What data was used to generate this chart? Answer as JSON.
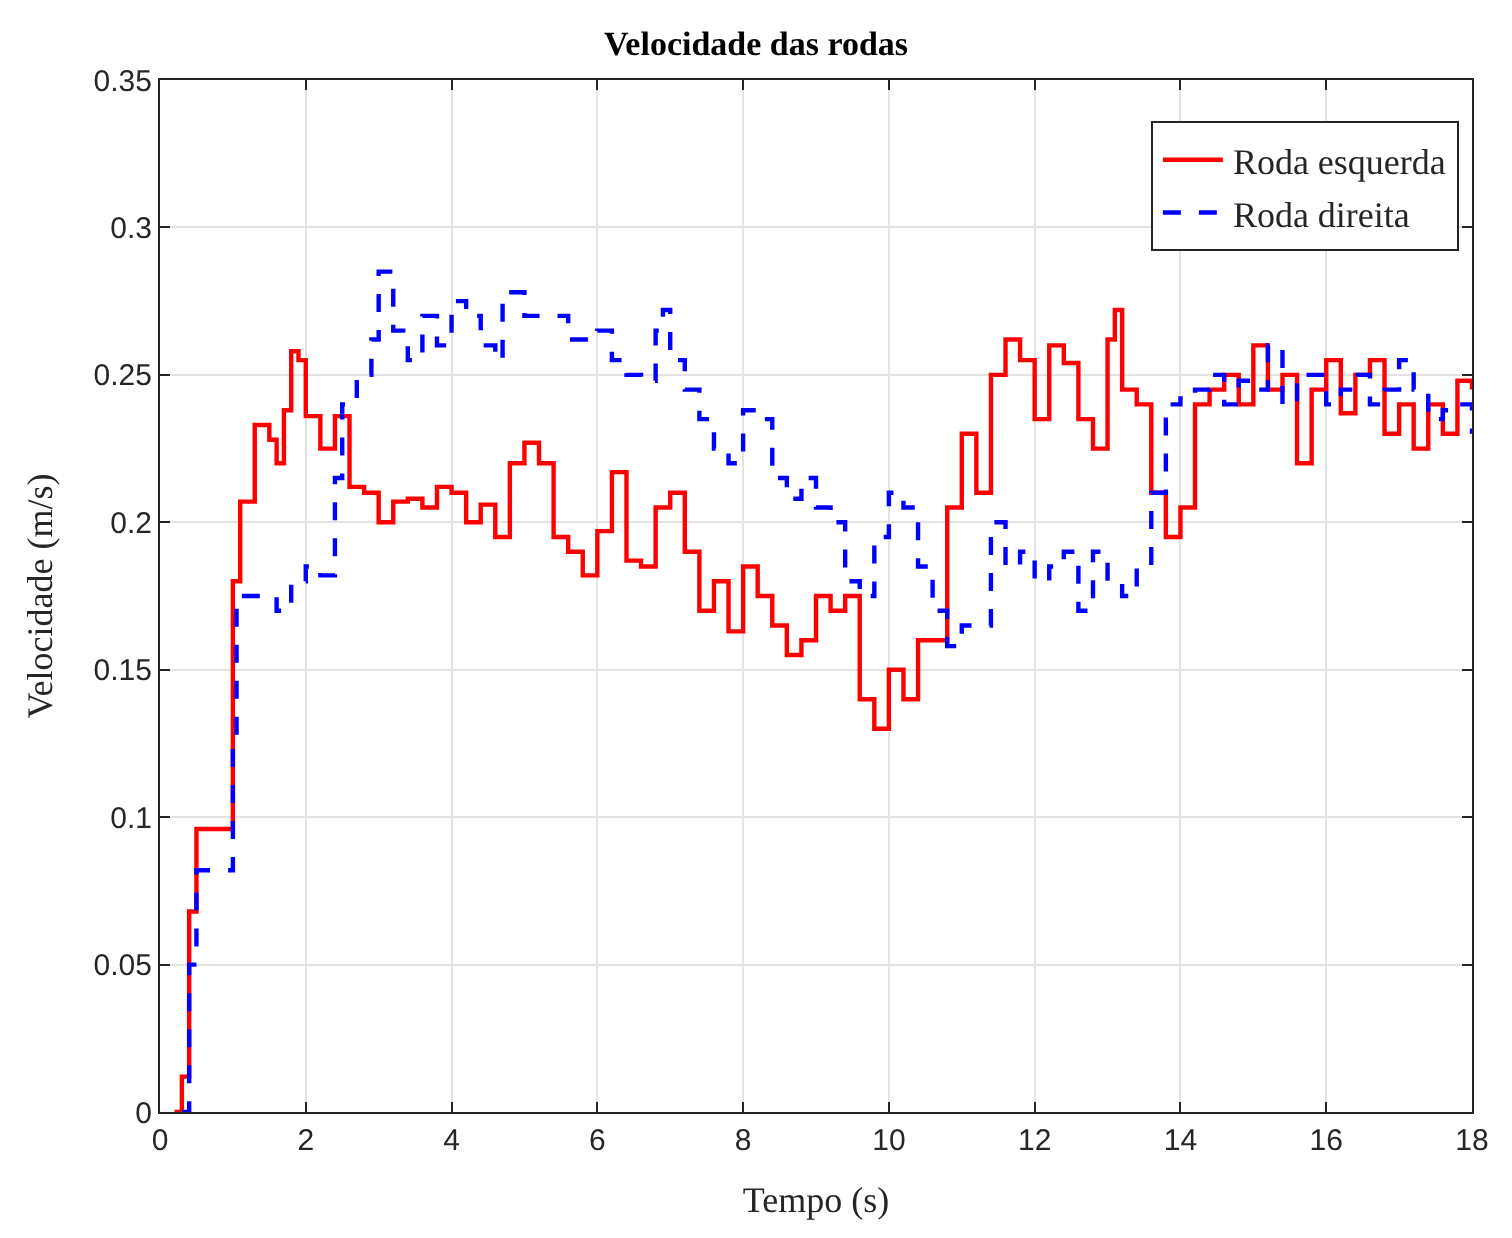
{
  "chart_data": {
    "type": "step",
    "title": "Velocidade das rodas",
    "xlabel": "Tempo (s)",
    "ylabel": "Velocidade (m/s)",
    "xlim": [
      0,
      18
    ],
    "xticks": [
      0,
      2,
      4,
      6,
      8,
      10,
      12,
      14,
      16,
      18
    ],
    "ylim": [
      0,
      0.35
    ],
    "yticks": [
      0,
      0.05,
      0.1,
      0.15,
      0.2,
      0.25,
      0.3,
      0.35
    ],
    "grid": true,
    "legend": "top right",
    "series": [
      {
        "name": "Roda esquerda",
        "color": "#ff0000",
        "line_style": "solid",
        "x": [
          0.2,
          0.3,
          0.4,
          0.5,
          1.0,
          1.1,
          1.3,
          1.5,
          1.6,
          1.7,
          1.8,
          1.9,
          2.0,
          2.2,
          2.4,
          2.6,
          2.8,
          3.0,
          3.2,
          3.4,
          3.6,
          3.8,
          4.0,
          4.2,
          4.4,
          4.6,
          4.8,
          5.0,
          5.2,
          5.4,
          5.6,
          5.8,
          6.0,
          6.2,
          6.4,
          6.6,
          6.8,
          7.0,
          7.2,
          7.4,
          7.6,
          7.8,
          8.0,
          8.2,
          8.4,
          8.6,
          8.8,
          9.0,
          9.2,
          9.4,
          9.6,
          9.8,
          10.0,
          10.2,
          10.4,
          10.6,
          10.8,
          11.0,
          11.2,
          11.4,
          11.6,
          11.8,
          12.0,
          12.2,
          12.4,
          12.6,
          12.8,
          13.0,
          13.1,
          13.2,
          13.4,
          13.6,
          13.8,
          14.0,
          14.2,
          14.4,
          14.6,
          14.8,
          15.0,
          15.2,
          15.4,
          15.6,
          15.8,
          16.0,
          16.2,
          16.4,
          16.6,
          16.8,
          17.0,
          17.2,
          17.4,
          17.6,
          17.8,
          18.0
        ],
        "values": [
          0,
          0.012,
          0.068,
          0.096,
          0.18,
          0.207,
          0.233,
          0.228,
          0.22,
          0.238,
          0.258,
          0.255,
          0.236,
          0.225,
          0.236,
          0.212,
          0.21,
          0.2,
          0.207,
          0.208,
          0.205,
          0.212,
          0.21,
          0.2,
          0.206,
          0.195,
          0.22,
          0.227,
          0.22,
          0.195,
          0.19,
          0.182,
          0.197,
          0.217,
          0.187,
          0.185,
          0.205,
          0.21,
          0.19,
          0.17,
          0.18,
          0.163,
          0.185,
          0.175,
          0.165,
          0.155,
          0.16,
          0.175,
          0.17,
          0.175,
          0.14,
          0.13,
          0.15,
          0.14,
          0.16,
          0.16,
          0.205,
          0.23,
          0.21,
          0.25,
          0.262,
          0.255,
          0.235,
          0.26,
          0.254,
          0.235,
          0.225,
          0.262,
          0.272,
          0.245,
          0.24,
          0.21,
          0.195,
          0.205,
          0.24,
          0.245,
          0.25,
          0.24,
          0.26,
          0.245,
          0.25,
          0.22,
          0.245,
          0.255,
          0.237,
          0.25,
          0.255,
          0.23,
          0.24,
          0.225,
          0.24,
          0.23,
          0.248,
          0.245
        ]
      },
      {
        "name": "Roda direita",
        "color": "#0000ff",
        "line_style": "dashed",
        "x": [
          0.3,
          0.4,
          0.5,
          1.0,
          1.05,
          1.4,
          1.6,
          1.8,
          2.0,
          2.2,
          2.4,
          2.5,
          2.7,
          2.9,
          3.0,
          3.2,
          3.4,
          3.6,
          3.8,
          4.0,
          4.2,
          4.4,
          4.6,
          4.7,
          5.0,
          5.4,
          5.6,
          6.0,
          6.2,
          6.4,
          6.6,
          6.8,
          6.9,
          7.0,
          7.2,
          7.4,
          7.6,
          7.8,
          8.0,
          8.2,
          8.4,
          8.6,
          8.8,
          9.0,
          9.2,
          9.4,
          9.6,
          9.8,
          10.0,
          10.2,
          10.4,
          10.6,
          10.8,
          11.0,
          11.4,
          11.6,
          11.8,
          12.0,
          12.2,
          12.4,
          12.6,
          12.8,
          13.0,
          13.2,
          13.4,
          13.6,
          13.8,
          14.0,
          14.2,
          14.4,
          14.6,
          14.8,
          15.0,
          15.2,
          15.4,
          15.6,
          15.8,
          16.0,
          16.2,
          16.4,
          16.6,
          16.8,
          17.0,
          17.2,
          17.4,
          17.6,
          17.8,
          18.0
        ],
        "values": [
          0,
          0.05,
          0.082,
          0.125,
          0.175,
          0.175,
          0.17,
          0.18,
          0.185,
          0.182,
          0.215,
          0.24,
          0.25,
          0.262,
          0.285,
          0.265,
          0.255,
          0.27,
          0.26,
          0.275,
          0.27,
          0.26,
          0.255,
          0.278,
          0.27,
          0.27,
          0.262,
          0.265,
          0.255,
          0.25,
          0.248,
          0.265,
          0.272,
          0.255,
          0.245,
          0.235,
          0.225,
          0.22,
          0.238,
          0.235,
          0.215,
          0.208,
          0.215,
          0.205,
          0.2,
          0.18,
          0.175,
          0.195,
          0.21,
          0.205,
          0.185,
          0.17,
          0.158,
          0.165,
          0.2,
          0.185,
          0.19,
          0.18,
          0.185,
          0.19,
          0.17,
          0.19,
          0.18,
          0.175,
          0.185,
          0.21,
          0.24,
          0.242,
          0.245,
          0.25,
          0.24,
          0.248,
          0.245,
          0.26,
          0.24,
          0.25,
          0.25,
          0.24,
          0.245,
          0.25,
          0.24,
          0.245,
          0.255,
          0.245,
          0.235,
          0.238,
          0.24,
          0.23
        ]
      }
    ]
  }
}
